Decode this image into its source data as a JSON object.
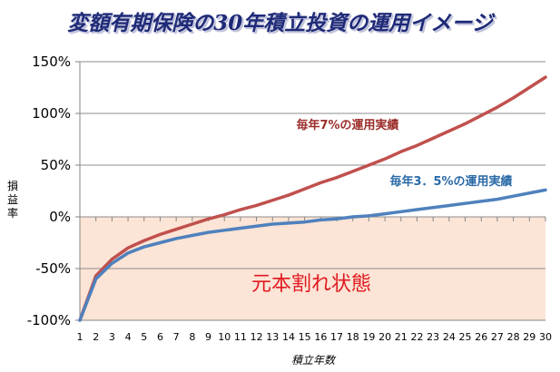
{
  "chart_data": {
    "type": "line",
    "title": "変額有期保険の30年積立投資の運用イメージ",
    "xlabel": "積立年数",
    "ylabel": "損益率",
    "ylim": [
      -100,
      150
    ],
    "yticks": [
      150,
      100,
      50,
      0,
      -50,
      -100
    ],
    "ytick_labels": [
      "150%",
      "100%",
      "50%",
      "0%",
      "-50%",
      "-100%"
    ],
    "x": [
      1,
      2,
      3,
      4,
      5,
      6,
      7,
      8,
      9,
      10,
      11,
      12,
      13,
      14,
      15,
      16,
      17,
      18,
      19,
      20,
      21,
      22,
      23,
      24,
      25,
      26,
      27,
      28,
      29,
      30
    ],
    "grid": "horizontal",
    "series": [
      {
        "name": "毎年7%の運用実績",
        "color": "#c0504d",
        "values": [
          -100,
          -57,
          -41,
          -30,
          -23,
          -17,
          -12,
          -7,
          -2,
          2,
          7,
          11,
          16,
          21,
          27,
          33,
          38,
          44,
          50,
          56,
          63,
          69,
          76,
          83,
          90,
          98,
          106,
          115,
          125,
          135
        ]
      },
      {
        "name": "毎年3．5%の運用実績",
        "color": "#4f81bd",
        "values": [
          -100,
          -60,
          -45,
          -35,
          -29,
          -25,
          -21,
          -18,
          -15,
          -13,
          -11,
          -9,
          -7,
          -6,
          -5,
          -3,
          -2,
          0,
          1,
          3,
          5,
          7,
          9,
          11,
          13,
          15,
          17,
          20,
          23,
          26
        ]
      }
    ],
    "shaded_region": {
      "label": "元本割れ状態",
      "from": -100,
      "to": 0,
      "color": "#fce4d6"
    }
  }
}
